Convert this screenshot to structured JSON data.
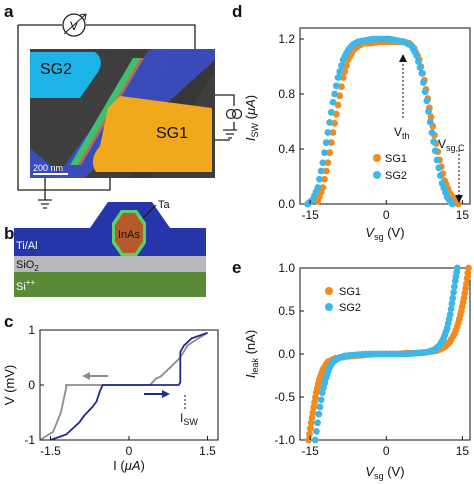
{
  "panels": {
    "a": {
      "letter": "a",
      "voltmeter_symbol": "V",
      "gate_labels": [
        "SG2",
        "SG1"
      ],
      "scale_bar": "200 nm",
      "colors": {
        "sg2": "#1eb3e6",
        "sg1": "#f2a81d",
        "wire": "#3cc26e",
        "lead": "#3b4fd0",
        "substrate": "#4a4a4a"
      }
    },
    "b": {
      "letter": "b",
      "labels": {
        "ta": "Ta",
        "inas": "InAs",
        "tial": "Ti/Al",
        "sio2_main": "SiO",
        "sio2_sub": "2",
        "si_main": "Si",
        "si_sup": "++"
      },
      "colors": {
        "tial": "#2636a8",
        "sio2": "#b8b8bf",
        "si": "#5a8a36",
        "inas": "#b55a2a",
        "ta": "#5ccf6a"
      }
    },
    "c": {
      "letter": "c",
      "chart_data": {
        "type": "line",
        "xlabel_main": "I (",
        "xlabel_unit": "μA",
        "xlabel_end": ")",
        "ylabel": "V (mV)",
        "xlim": [
          -1.7,
          1.7
        ],
        "ylim": [
          -1,
          1
        ],
        "xticks": [
          "-1.5",
          "0",
          "1.5"
        ],
        "xtick_values": [
          -1.5,
          0,
          1.5
        ],
        "yticks": [
          "1",
          "0",
          "-1"
        ],
        "ytick_values": [
          1,
          0,
          -1
        ],
        "annotation_main": "I",
        "annotation_sub": "SW",
        "series": [
          {
            "color": "#8c8c8c",
            "x": [
              1.5,
              1.28,
              1.12,
              0.98,
              0.82,
              0.6,
              0.52,
              0.45,
              0.4,
              0.3,
              -1.2,
              -1.2,
              -1.3,
              -1.45,
              -1.7
            ],
            "y": [
              0.95,
              0.82,
              0.72,
              0.5,
              0.35,
              0.15,
              0.12,
              0.05,
              0.0,
              0.0,
              0.0,
              -0.05,
              -0.5,
              -0.85,
              -1.0
            ]
          },
          {
            "color": "#1f2a8a",
            "x": [
              -1.5,
              -1.2,
              -0.95,
              -0.85,
              -0.7,
              -0.62,
              -0.55,
              -0.5,
              0.95,
              0.98,
              0.98,
              1.05,
              1.2,
              1.5
            ],
            "y": [
              -1.0,
              -0.9,
              -0.68,
              -0.55,
              -0.4,
              -0.3,
              -0.1,
              0.0,
              0.0,
              0.05,
              0.6,
              0.72,
              0.85,
              0.95
            ]
          }
        ]
      }
    },
    "d": {
      "letter": "d",
      "chart_data": {
        "type": "scatter",
        "ylabel_main": "I",
        "ylabel_sub": "SW",
        "ylabel_unit_open": " (",
        "ylabel_unit": "μA",
        "ylabel_unit_close": ")",
        "xlabel_main": "V",
        "xlabel_sub": "sg",
        "xlabel_unit": " (V)",
        "xlim": [
          -17,
          16.5
        ],
        "ylim": [
          0,
          1.28
        ],
        "xticks": [
          "-15",
          "0",
          "15"
        ],
        "xtick_values": [
          -15,
          0,
          15
        ],
        "yticks": [
          "1.2",
          "0.8",
          "0.4",
          "0.0"
        ],
        "ytick_values": [
          1.2,
          0.8,
          0.4,
          0.0
        ],
        "annotations": {
          "vth_main": "V",
          "vth_sub": "th",
          "vsgc_main": "V",
          "vsgc_sub": "sg,C"
        },
        "series": [
          {
            "name": "SG1",
            "color": "#f28a1e",
            "x": [
              -13.5,
              -12.5,
              -11.5,
              -10.5,
              -9.5,
              -8.5,
              -7.5,
              -6.5,
              -5.5,
              -4.5,
              -3,
              -1.5,
              0,
              1.5,
              3,
              4.5,
              5.5,
              6.5,
              7.5,
              8.5,
              9.5,
              10.5,
              11.5,
              12.5,
              13.5,
              14.2
            ],
            "y": [
              0.02,
              0.12,
              0.3,
              0.52,
              0.72,
              0.92,
              1.05,
              1.12,
              1.15,
              1.17,
              1.17,
              1.18,
              1.18,
              1.18,
              1.18,
              1.17,
              1.13,
              1.05,
              0.9,
              0.7,
              0.5,
              0.32,
              0.17,
              0.08,
              0.02,
              0.0
            ]
          },
          {
            "name": "SG2",
            "color": "#3fb6e8",
            "x": [
              -15.5,
              -14.5,
              -13.5,
              -12.5,
              -11.5,
              -10.5,
              -9.5,
              -8.5,
              -7.5,
              -6.5,
              -5.5,
              -4,
              -2.5,
              -1,
              0.5,
              2,
              3.5,
              5,
              6,
              7,
              8,
              9,
              10,
              11,
              12,
              13
            ],
            "y": [
              0.0,
              0.03,
              0.12,
              0.3,
              0.52,
              0.74,
              0.92,
              1.05,
              1.12,
              1.16,
              1.18,
              1.19,
              1.2,
              1.2,
              1.2,
              1.19,
              1.18,
              1.15,
              1.08,
              0.95,
              0.75,
              0.52,
              0.32,
              0.15,
              0.05,
              0.0
            ]
          }
        ]
      }
    },
    "e": {
      "letter": "e",
      "chart_data": {
        "type": "scatter",
        "ylabel_main": "I",
        "ylabel_sub": "leak",
        "ylabel_unit": " (nA)",
        "xlabel_main": "V",
        "xlabel_sub": "sg",
        "xlabel_unit": " (V)",
        "xlim": [
          -17,
          16.5
        ],
        "ylim": [
          -1,
          1
        ],
        "xticks": [
          "-15",
          "0",
          "15"
        ],
        "xtick_values": [
          -15,
          0,
          15
        ],
        "yticks": [
          "1.0",
          "0.5",
          "0.0",
          "-0.5",
          "-1.0"
        ],
        "ytick_values": [
          1.0,
          0.5,
          0.0,
          -0.5,
          -1.0
        ],
        "series": [
          {
            "name": "SG1",
            "color": "#f28a1e",
            "x": [
              -15.3,
              -14.8,
              -14.3,
              -13.8,
              -13.2,
              -12.5,
              -11.5,
              -10,
              -8,
              -6,
              -4,
              -2,
              0,
              2,
              4,
              6,
              8,
              10,
              11.5,
              12.5,
              13.5,
              14.2,
              14.8,
              15.3,
              15.8,
              16.2
            ],
            "y": [
              -1.0,
              -0.8,
              -0.62,
              -0.45,
              -0.3,
              -0.18,
              -0.09,
              -0.05,
              -0.03,
              -0.02,
              -0.01,
              0.0,
              0.0,
              0.0,
              0.01,
              0.01,
              0.02,
              0.04,
              0.08,
              0.14,
              0.24,
              0.36,
              0.5,
              0.65,
              0.82,
              1.0
            ]
          },
          {
            "name": "SG2",
            "color": "#3fb6e8",
            "x": [
              -14,
              -13.3,
              -12.6,
              -11.9,
              -11.2,
              -10.5,
              -9.5,
              -8,
              -6,
              -4,
              -2,
              0,
              2,
              4,
              6,
              8,
              9.5,
              10.5,
              11.3,
              12,
              12.6,
              13.1,
              13.6,
              14.0
            ],
            "y": [
              -1.0,
              -0.7,
              -0.45,
              -0.28,
              -0.16,
              -0.09,
              -0.05,
              -0.02,
              -0.01,
              0.0,
              0.0,
              0.0,
              0.0,
              0.0,
              0.01,
              0.02,
              0.05,
              0.1,
              0.18,
              0.3,
              0.46,
              0.65,
              0.85,
              1.0
            ]
          }
        ]
      }
    }
  }
}
